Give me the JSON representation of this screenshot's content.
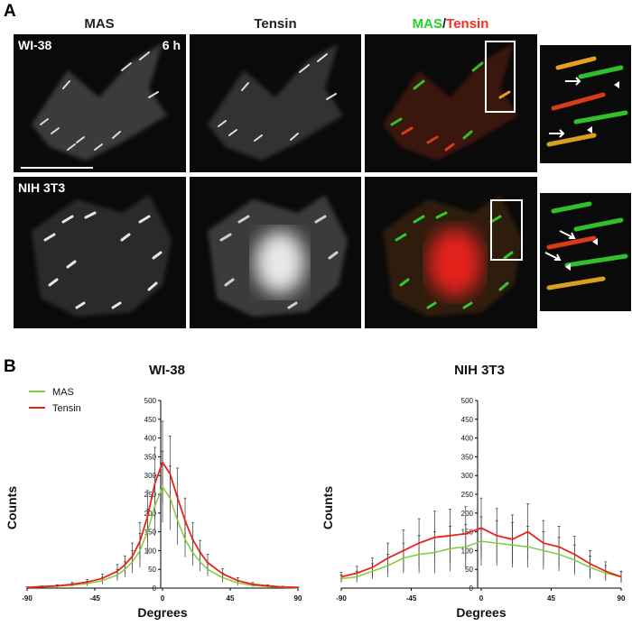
{
  "panel_a": {
    "letter": "A",
    "col_titles": {
      "mas": "MAS",
      "tensin": "Tensin",
      "merge_mas": "MAS",
      "merge_sep": "/",
      "merge_tensin": "Tensin"
    },
    "rows": [
      {
        "label": "WI-38",
        "time": "6 h"
      },
      {
        "label": "NIH 3T3"
      }
    ],
    "colors": {
      "mas": "#22d32a",
      "tensin": "#ff2a1a"
    }
  },
  "panel_b": {
    "letter": "B"
  },
  "chart_data": [
    {
      "type": "line",
      "title": "WI-38",
      "xlabel": "Degrees",
      "ylabel": "Counts",
      "xlim": [
        -90,
        90
      ],
      "ylim": [
        0,
        500
      ],
      "xticks": [
        -90,
        -45,
        0,
        45,
        90
      ],
      "yticks": [
        0,
        50,
        100,
        150,
        200,
        250,
        300,
        350,
        400,
        450,
        500
      ],
      "legend": "top-left",
      "series": [
        {
          "name": "MAS",
          "color": "#7fcc3a",
          "x": [
            -90,
            -80,
            -70,
            -60,
            -50,
            -40,
            -30,
            -25,
            -20,
            -15,
            -10,
            -5,
            0,
            5,
            10,
            15,
            20,
            25,
            30,
            40,
            50,
            60,
            70,
            80,
            90
          ],
          "y": [
            2,
            3,
            5,
            8,
            12,
            20,
            35,
            50,
            70,
            100,
            150,
            220,
            270,
            240,
            180,
            130,
            95,
            70,
            50,
            28,
            14,
            7,
            4,
            2,
            1
          ],
          "err": [
            1,
            2,
            3,
            4,
            6,
            9,
            15,
            20,
            30,
            45,
            60,
            80,
            95,
            85,
            65,
            48,
            35,
            25,
            18,
            12,
            7,
            4,
            2,
            1,
            1
          ]
        },
        {
          "name": "Tensin",
          "color": "#e8231c",
          "x": [
            -90,
            -80,
            -70,
            -60,
            -50,
            -40,
            -30,
            -25,
            -20,
            -15,
            -10,
            -5,
            0,
            5,
            10,
            15,
            20,
            25,
            30,
            40,
            50,
            60,
            70,
            80,
            90
          ],
          "y": [
            2,
            4,
            6,
            10,
            16,
            26,
            45,
            62,
            85,
            125,
            190,
            280,
            335,
            305,
            240,
            180,
            130,
            95,
            68,
            38,
            20,
            10,
            6,
            3,
            2
          ],
          "err": [
            1,
            2,
            3,
            5,
            7,
            11,
            18,
            24,
            35,
            50,
            70,
            95,
            110,
            100,
            80,
            60,
            45,
            32,
            22,
            14,
            8,
            5,
            3,
            2,
            1
          ]
        }
      ]
    },
    {
      "type": "line",
      "title": "NIH 3T3",
      "xlabel": "Degrees",
      "ylabel": "Counts",
      "xlim": [
        -90,
        90
      ],
      "ylim": [
        0,
        500
      ],
      "xticks": [
        -90,
        -45,
        0,
        45,
        90
      ],
      "yticks": [
        0,
        50,
        100,
        150,
        200,
        250,
        300,
        350,
        400,
        450,
        500
      ],
      "series": [
        {
          "name": "MAS",
          "color": "#7fcc3a",
          "x": [
            -90,
            -80,
            -70,
            -60,
            -50,
            -40,
            -30,
            -20,
            -10,
            0,
            10,
            20,
            30,
            40,
            50,
            60,
            70,
            80,
            90
          ],
          "y": [
            25,
            30,
            45,
            60,
            80,
            90,
            95,
            105,
            110,
            125,
            120,
            115,
            110,
            100,
            90,
            75,
            55,
            40,
            30
          ],
          "err": [
            10,
            15,
            20,
            30,
            40,
            50,
            55,
            60,
            60,
            65,
            60,
            60,
            55,
            50,
            45,
            40,
            30,
            20,
            15
          ]
        },
        {
          "name": "Tensin",
          "color": "#e8231c",
          "x": [
            -90,
            -80,
            -70,
            -60,
            -50,
            -40,
            -30,
            -20,
            -10,
            0,
            10,
            20,
            30,
            40,
            50,
            60,
            70,
            80,
            90
          ],
          "y": [
            30,
            40,
            55,
            80,
            100,
            120,
            135,
            140,
            145,
            160,
            140,
            130,
            150,
            120,
            110,
            90,
            65,
            45,
            30
          ],
          "err": [
            12,
            18,
            25,
            40,
            55,
            65,
            70,
            70,
            72,
            80,
            72,
            65,
            75,
            60,
            55,
            48,
            35,
            25,
            15
          ]
        }
      ]
    }
  ]
}
